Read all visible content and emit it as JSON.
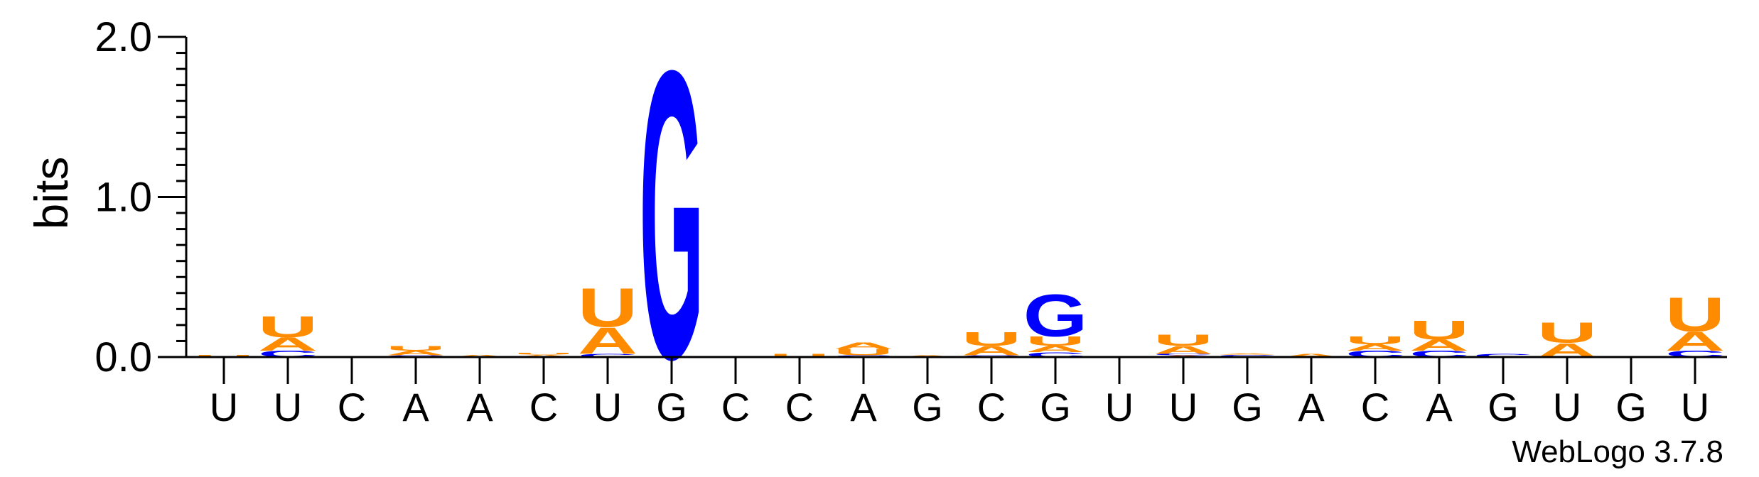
{
  "chart_data": {
    "type": "sequence-logo",
    "ylabel": "bits",
    "ylim": [
      0,
      2.0
    ],
    "yticks": [
      "0.0",
      "1.0",
      "2.0"
    ],
    "positions": [
      "U",
      "U",
      "C",
      "A",
      "A",
      "C",
      "U",
      "G",
      "C",
      "C",
      "A",
      "G",
      "C",
      "G",
      "U",
      "U",
      "G",
      "A",
      "C",
      "A",
      "G",
      "U",
      "G",
      "U"
    ],
    "colors": {
      "A": "#ff8c00",
      "U": "#ff8c00",
      "G": "#0000ff",
      "C": "#0000ff"
    },
    "stacks": [
      [
        {
          "letter": "U",
          "bits": 0.015
        }
      ],
      [
        {
          "letter": "C",
          "bits": 0.04
        },
        {
          "letter": "A",
          "bits": 0.085
        },
        {
          "letter": "U",
          "bits": 0.135
        }
      ],
      [],
      [
        {
          "letter": "C",
          "bits": 0.01
        },
        {
          "letter": "A",
          "bits": 0.03
        },
        {
          "letter": "U",
          "bits": 0.03
        }
      ],
      [
        {
          "letter": "A",
          "bits": 0.015
        }
      ],
      [
        {
          "letter": "A",
          "bits": 0.015
        },
        {
          "letter": "U",
          "bits": 0.01
        }
      ],
      [
        {
          "letter": "C",
          "bits": 0.02
        },
        {
          "letter": "A",
          "bits": 0.17
        },
        {
          "letter": "U",
          "bits": 0.25
        }
      ],
      [
        {
          "letter": "G",
          "bits": 1.85
        }
      ],
      [],
      [
        {
          "letter": "U",
          "bits": 0.02
        }
      ],
      [
        {
          "letter": "C",
          "bits": 0.01
        },
        {
          "letter": "U",
          "bits": 0.04
        },
        {
          "letter": "A",
          "bits": 0.04
        }
      ],
      [
        {
          "letter": "A",
          "bits": 0.01
        }
      ],
      [
        {
          "letter": "C",
          "bits": 0.01
        },
        {
          "letter": "A",
          "bits": 0.06
        },
        {
          "letter": "U",
          "bits": 0.09
        }
      ],
      [
        {
          "letter": "C",
          "bits": 0.03
        },
        {
          "letter": "A",
          "bits": 0.04
        },
        {
          "letter": "U",
          "bits": 0.06
        },
        {
          "letter": "G",
          "bits": 0.27
        }
      ],
      [],
      [
        {
          "letter": "A",
          "bits": 0.01
        },
        {
          "letter": "C",
          "bits": 0.01
        },
        {
          "letter": "A",
          "bits": 0.05
        },
        {
          "letter": "U",
          "bits": 0.07
        }
      ],
      [
        {
          "letter": "C",
          "bits": 0.015
        },
        {
          "letter": "A",
          "bits": 0.005
        }
      ],
      [
        {
          "letter": "A",
          "bits": 0.02
        }
      ],
      [
        {
          "letter": "C",
          "bits": 0.04
        },
        {
          "letter": "A",
          "bits": 0.04
        },
        {
          "letter": "U",
          "bits": 0.05
        }
      ],
      [
        {
          "letter": "C",
          "bits": 0.04
        },
        {
          "letter": "A",
          "bits": 0.07
        },
        {
          "letter": "U",
          "bits": 0.12
        }
      ],
      [
        {
          "letter": "C",
          "bits": 0.02
        }
      ],
      [
        {
          "letter": "A",
          "bits": 0.09
        },
        {
          "letter": "U",
          "bits": 0.13
        }
      ],
      [],
      [
        {
          "letter": "C",
          "bits": 0.04
        },
        {
          "letter": "A",
          "bits": 0.12
        },
        {
          "letter": "U",
          "bits": 0.22
        }
      ]
    ],
    "watermark": "WebLogo 3.7.8"
  }
}
